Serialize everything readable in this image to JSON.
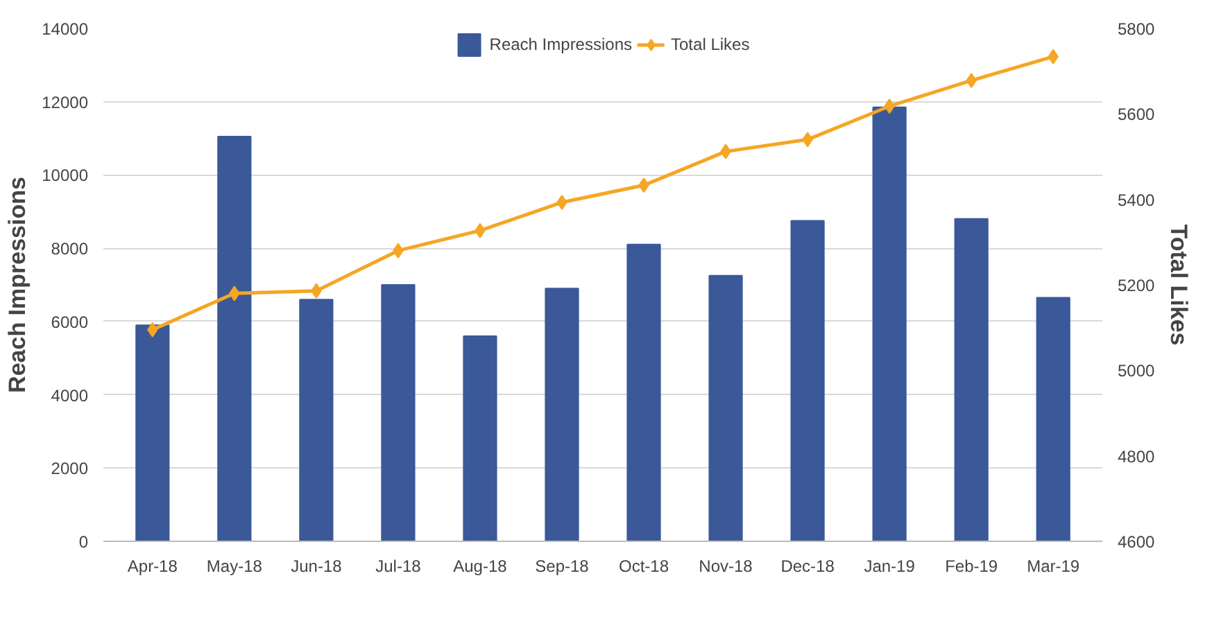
{
  "chart_data": {
    "type": "bar",
    "categories": [
      "Apr-18",
      "May-18",
      "Jun-18",
      "Jul-18",
      "Aug-18",
      "Sep-18",
      "Oct-18",
      "Nov-18",
      "Dec-18",
      "Jan-19",
      "Feb-19",
      "Mar-19"
    ],
    "series": [
      {
        "name": "Reach Impressions",
        "color": "#3b5999",
        "values": [
          5900,
          11050,
          6600,
          7000,
          5600,
          6900,
          8100,
          7250,
          8750,
          11850,
          8800,
          6650
        ]
      },
      {
        "name": "Total Likes",
        "type": "line",
        "axis": "y2",
        "color": "#f5a623",
        "marker": "diamond",
        "values": [
          5095,
          5180,
          5186,
          5280,
          5327,
          5393,
          5433,
          5512,
          5540,
          5618,
          5678,
          5734
        ]
      }
    ],
    "ylabel": "Reach Impressions",
    "y2label": "Total Likes",
    "ylim": [
      0,
      14000
    ],
    "yticks": [
      0,
      2000,
      4000,
      6000,
      8000,
      10000,
      12000,
      14000
    ],
    "y2lim": [
      4600,
      5800
    ],
    "y2ticks": [
      4600,
      4800,
      5000,
      5200,
      5400,
      5600,
      5800
    ],
    "grid": "y",
    "legend": "top"
  }
}
